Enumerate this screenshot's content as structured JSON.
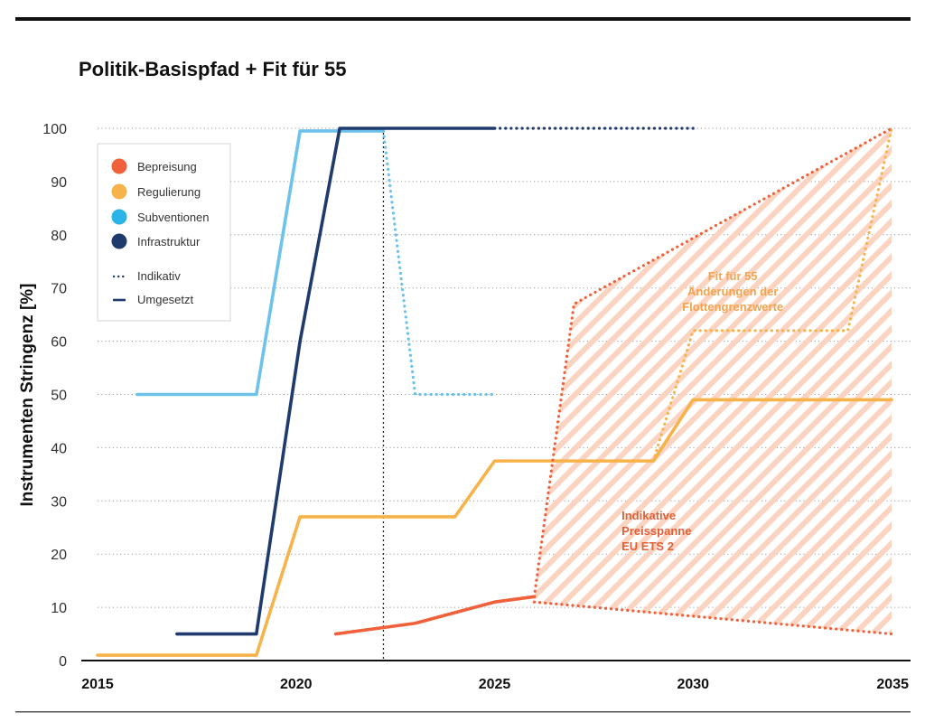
{
  "chart_data": {
    "type": "line",
    "title": "Politik-Basispfad + Fit für 55",
    "ylabel": "Instrumenten Stringenz  [%]",
    "xlabel": "",
    "xlim": [
      2015,
      2035
    ],
    "ylim": [
      0,
      100
    ],
    "x_ticks": [
      "2015",
      "2020",
      "2025",
      "2030",
      "2035"
    ],
    "y_ticks": [
      "0",
      "10",
      "20",
      "30",
      "40",
      "50",
      "60",
      "70",
      "80",
      "90",
      "100"
    ],
    "grid": "horizontal dotted",
    "reference_line_x": 2022.2,
    "legend": {
      "position": "top-left",
      "entries": [
        {
          "label": "Bepreisung",
          "color": "#f0603a",
          "marker": "circle"
        },
        {
          "label": "Regulierung",
          "color": "#f7b24a",
          "marker": "circle"
        },
        {
          "label": "Subventionen",
          "color": "#29b3e6",
          "marker": "circle"
        },
        {
          "label": "Infrastruktur",
          "color": "#1f3a6d",
          "marker": "circle"
        },
        {
          "label": "Indikativ",
          "color": "#1f3a6d",
          "marker": "dots"
        },
        {
          "label": "Umgesetzt",
          "color": "#1f3a6d",
          "marker": "line"
        }
      ]
    },
    "series": [
      {
        "name": "Subventionen",
        "style": "solid",
        "color": "#6cc2ea",
        "x": [
          2016.0,
          2019.0,
          2020.1,
          2022.2
        ],
        "y": [
          50,
          50,
          99.5,
          99.5
        ]
      },
      {
        "name": "Subventionen",
        "style": "dotted",
        "color": "#6cc2ea",
        "x": [
          2022.2,
          2023.0,
          2025.0
        ],
        "y": [
          99.5,
          50,
          50
        ]
      },
      {
        "name": "Infrastruktur",
        "style": "solid",
        "color": "#1f3a6d",
        "x": [
          2017.0,
          2019.0,
          2020.1,
          2021.1,
          2025.0
        ],
        "y": [
          5,
          5,
          60,
          100,
          100
        ]
      },
      {
        "name": "Infrastruktur",
        "style": "dotted",
        "color": "#1f3a6d",
        "x": [
          2025.0,
          2030.0
        ],
        "y": [
          100,
          100
        ]
      },
      {
        "name": "Regulierung",
        "style": "solid",
        "color": "#f7b24a",
        "x": [
          2015.0,
          2019.0,
          2020.1,
          2024.0,
          2025.0,
          2029.0,
          2030.0,
          2035.0
        ],
        "y": [
          1,
          1,
          27,
          27,
          37.5,
          37.5,
          49,
          49
        ]
      },
      {
        "name": "Regulierung",
        "style": "dotted",
        "color": "#f7b24a",
        "x": [
          2029.0,
          2030.0,
          2033.9,
          2035.0
        ],
        "y": [
          37.5,
          62,
          62,
          100
        ]
      },
      {
        "name": "Bepreisung",
        "style": "solid",
        "color": "#f0603a",
        "x": [
          2021.0,
          2023.0,
          2025.0,
          2026.0
        ],
        "y": [
          5,
          7,
          11,
          12
        ]
      },
      {
        "name": "Bepreisung",
        "style": "dotted",
        "color": "#f0603a",
        "x": [
          2026.0,
          2035.0
        ],
        "y": [
          11,
          5
        ]
      },
      {
        "name": "Bepreisung",
        "style": "dotted",
        "color": "#f0603a",
        "x": [
          2026.0,
          2027.0,
          2035.0
        ],
        "y": [
          12,
          67,
          100
        ]
      }
    ],
    "shaded_region": {
      "name": "Indikative Preisspanne EU ETS 2",
      "color": "#f9c9b4",
      "polygon_x": [
        2026.0,
        2027.0,
        2035.0,
        2035.0,
        2026.0
      ],
      "polygon_y": [
        12,
        67,
        100,
        5,
        11
      ]
    },
    "annotations": [
      {
        "lines": [
          "Fit für 55",
          "Änderungen der",
          "Flottengrenzwerte"
        ],
        "color": "#f4a34e",
        "x": 2031.0,
        "y": 71.5,
        "align": "middle"
      },
      {
        "lines": [
          "Indikative",
          "Preisspanne",
          "EU ETS 2"
        ],
        "color": "#e35f36",
        "x": 2028.2,
        "y": 26.5,
        "align": "start"
      }
    ]
  }
}
